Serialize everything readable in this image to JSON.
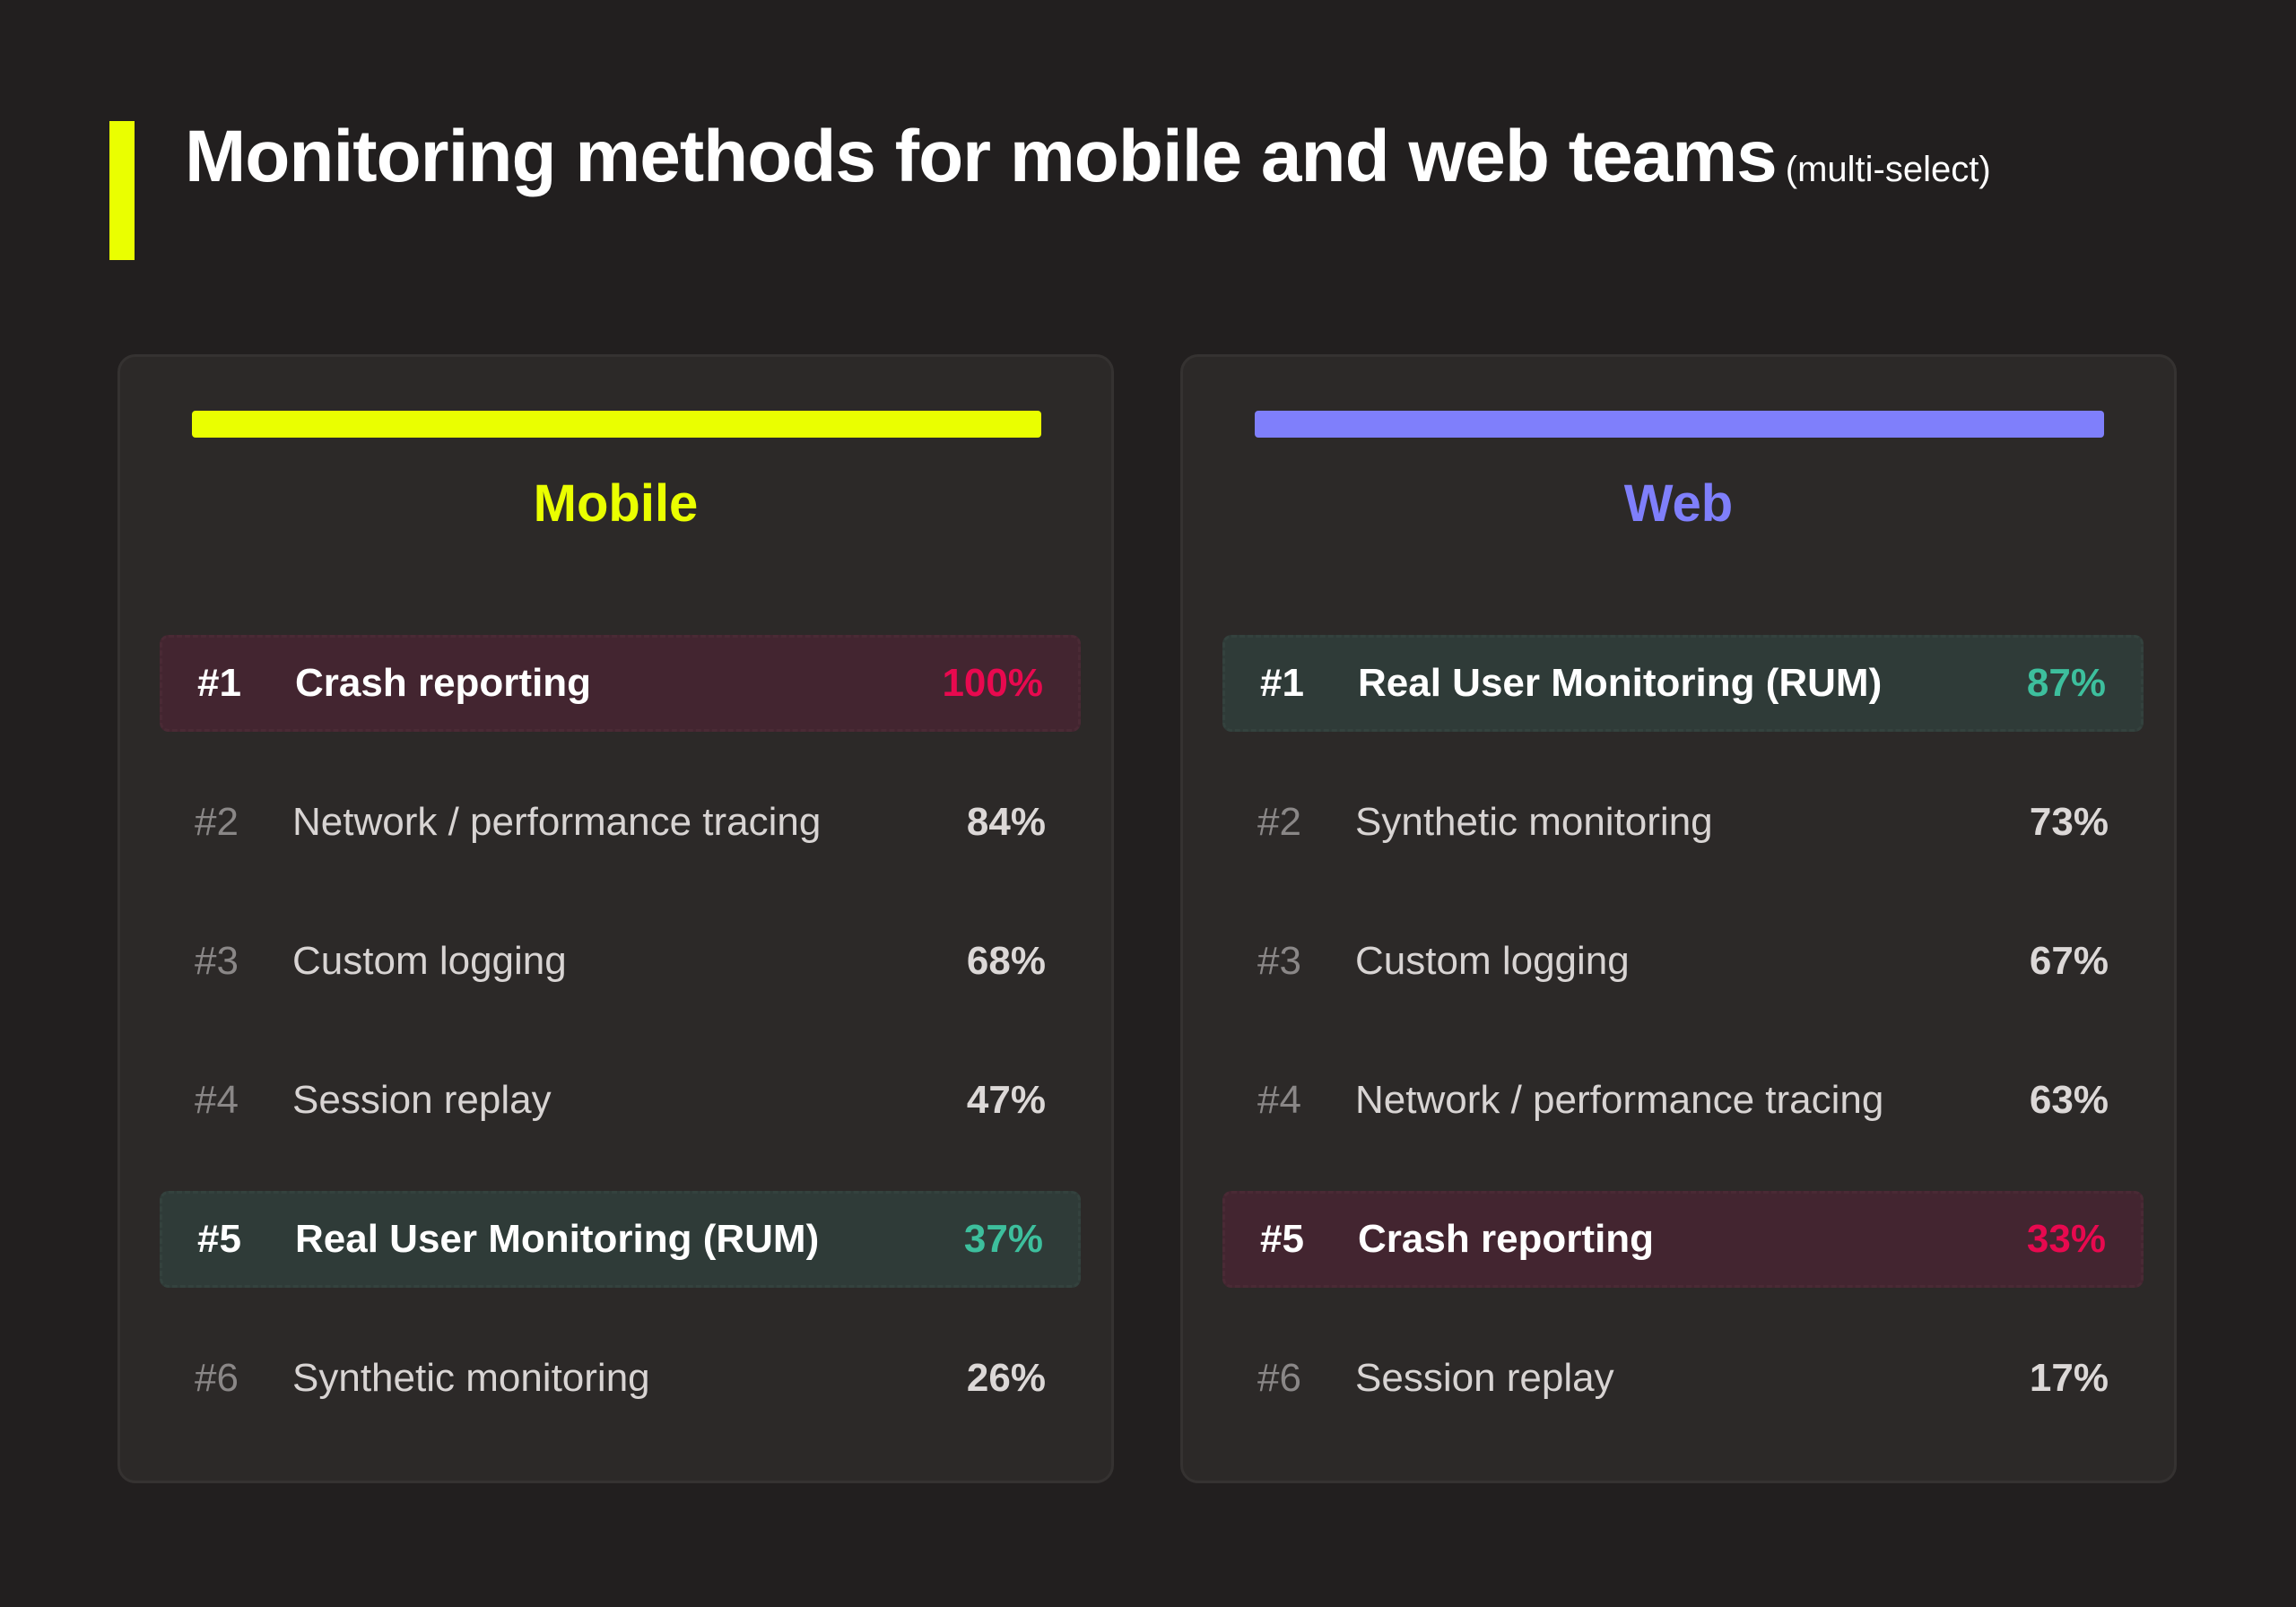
{
  "title": "Monitoring methods for mobile and web teams",
  "subtitle": "(multi-select)",
  "colors": {
    "accent": "#eaff00",
    "mobile": "#eaff00",
    "web": "#7f7ffb",
    "highlight_red": "#e8094f",
    "highlight_teal": "#3dbf9d"
  },
  "panels": [
    {
      "name": "Mobile",
      "rows": [
        {
          "rank": "#1",
          "label": "Crash reporting",
          "pct": "100%",
          "highlight": "red"
        },
        {
          "rank": "#2",
          "label": "Network / performance tracing",
          "pct": "84%",
          "highlight": ""
        },
        {
          "rank": "#3",
          "label": "Custom logging",
          "pct": "68%",
          "highlight": ""
        },
        {
          "rank": "#4",
          "label": "Session replay",
          "pct": "47%",
          "highlight": ""
        },
        {
          "rank": "#5",
          "label": "Real User Monitoring (RUM)",
          "pct": "37%",
          "highlight": "teal"
        },
        {
          "rank": "#6",
          "label": "Synthetic monitoring",
          "pct": "26%",
          "highlight": ""
        }
      ]
    },
    {
      "name": "Web",
      "rows": [
        {
          "rank": "#1",
          "label": "Real User Monitoring (RUM)",
          "pct": "87%",
          "highlight": "teal"
        },
        {
          "rank": "#2",
          "label": "Synthetic monitoring",
          "pct": "73%",
          "highlight": ""
        },
        {
          "rank": "#3",
          "label": "Custom logging",
          "pct": "67%",
          "highlight": ""
        },
        {
          "rank": "#4",
          "label": "Network / performance tracing",
          "pct": "63%",
          "highlight": ""
        },
        {
          "rank": "#5",
          "label": "Crash reporting",
          "pct": "33%",
          "highlight": "red"
        },
        {
          "rank": "#6",
          "label": "Session replay",
          "pct": "17%",
          "highlight": ""
        }
      ]
    }
  ]
}
